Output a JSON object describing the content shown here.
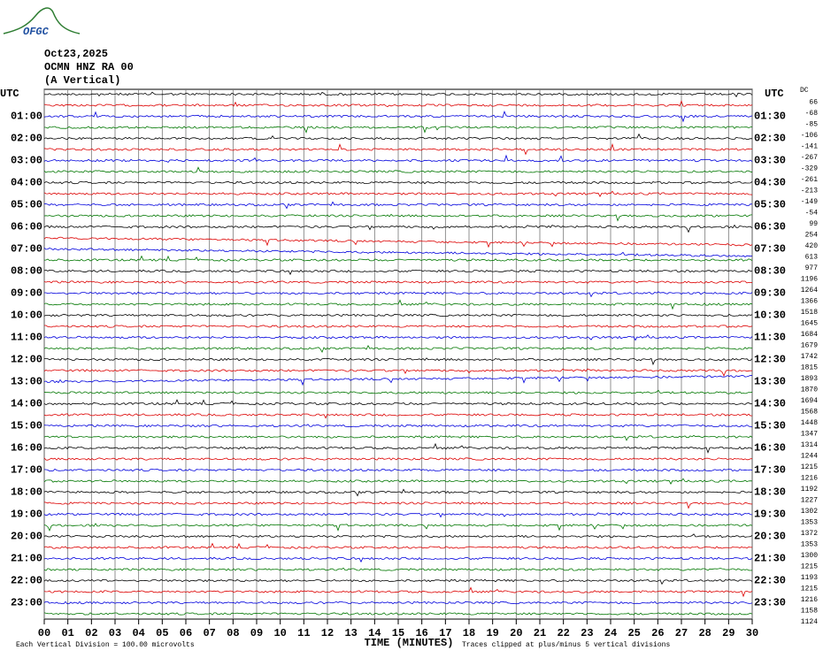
{
  "logo": "OFGC",
  "header": {
    "date": "Oct23,2025",
    "station": "OCMN HNZ RA 00",
    "component": "(A Vertical)"
  },
  "left_title": "UTC",
  "right_title": "UTC",
  "dc_title": "DC",
  "left_labels": [
    "01:00",
    "02:00",
    "03:00",
    "04:00",
    "05:00",
    "06:00",
    "07:00",
    "08:00",
    "09:00",
    "10:00",
    "11:00",
    "12:00",
    "13:00",
    "14:00",
    "15:00",
    "16:00",
    "17:00",
    "18:00",
    "19:00",
    "20:00",
    "21:00",
    "22:00",
    "23:00"
  ],
  "right_labels": [
    "01:30",
    "02:30",
    "03:30",
    "04:30",
    "05:30",
    "06:30",
    "07:30",
    "08:30",
    "09:30",
    "10:30",
    "11:30",
    "12:30",
    "13:30",
    "14:30",
    "15:30",
    "16:30",
    "17:30",
    "18:30",
    "19:30",
    "20:30",
    "21:30",
    "22:30",
    "23:30"
  ],
  "dc_offsets": [
    66,
    -68,
    -85,
    -106,
    -141,
    -267,
    -329,
    -261,
    -213,
    -149,
    -54,
    99,
    254,
    420,
    613,
    977,
    1196,
    1264,
    1366,
    1518,
    1645,
    1684,
    1679,
    1742,
    1815,
    1893,
    1870,
    1694,
    1568,
    1448,
    1347,
    1314,
    1244,
    1215,
    1216,
    1192,
    1227,
    1302,
    1353,
    1372,
    1353,
    1300,
    1215,
    1193,
    1215,
    1216,
    1158,
    1124
  ],
  "x_tick_labels": [
    "00",
    "01",
    "02",
    "03",
    "04",
    "05",
    "06",
    "07",
    "08",
    "09",
    "10",
    "11",
    "12",
    "13",
    "14",
    "15",
    "16",
    "17",
    "18",
    "19",
    "20",
    "21",
    "22",
    "23",
    "24",
    "25",
    "26",
    "27",
    "28",
    "29",
    "30"
  ],
  "footer": {
    "scale": "Each Vertical Division =  100.00 microvolts",
    "x_title": "TIME (MINUTES)",
    "clip_note": "Traces clipped at plus/minus 5 vertical divisions"
  }
}
